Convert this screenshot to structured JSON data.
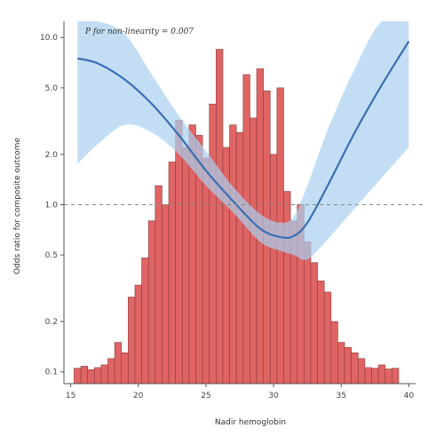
{
  "chart_data": {
    "type": "bar",
    "overlay": "restricted cubic spline (line with confidence band)",
    "title": "",
    "xlabel": "Nadir hemoglobin",
    "ylabel": "Odds ratio for composite outcome",
    "annotation": "P for non-linearity = 0.007",
    "x_ticks": [
      15,
      20,
      25,
      30,
      35,
      40
    ],
    "y_ticks": [
      {
        "value": 10.0,
        "label": "10.0"
      },
      {
        "value": 5.0,
        "label": "5.0"
      },
      {
        "value": 2.0,
        "label": "2.0"
      },
      {
        "value": 1.0,
        "label": "1.0"
      },
      {
        "value": 0.5,
        "label": "0.5"
      },
      {
        "value": 0.2,
        "label": "0.2"
      },
      {
        "value": 0.1,
        "label": "0.1"
      }
    ],
    "xlim": [
      14.5,
      40.5
    ],
    "ylim": [
      0.085,
      12.5
    ],
    "yscale": "log",
    "reference_line": {
      "y": 1.0,
      "style": "dashed"
    },
    "bins": [
      {
        "x": 15.5,
        "y": 0.105
      },
      {
        "x": 16.0,
        "y": 0.108
      },
      {
        "x": 16.5,
        "y": 0.103
      },
      {
        "x": 17.0,
        "y": 0.106
      },
      {
        "x": 17.5,
        "y": 0.11
      },
      {
        "x": 18.0,
        "y": 0.12
      },
      {
        "x": 18.5,
        "y": 0.15
      },
      {
        "x": 19.0,
        "y": 0.13
      },
      {
        "x": 19.5,
        "y": 0.28
      },
      {
        "x": 20.0,
        "y": 0.33
      },
      {
        "x": 20.5,
        "y": 0.48
      },
      {
        "x": 21.0,
        "y": 0.8
      },
      {
        "x": 21.5,
        "y": 1.3
      },
      {
        "x": 22.0,
        "y": 1.0
      },
      {
        "x": 22.5,
        "y": 1.8
      },
      {
        "x": 23.0,
        "y": 3.2
      },
      {
        "x": 23.5,
        "y": 2.2
      },
      {
        "x": 24.0,
        "y": 3.0
      },
      {
        "x": 24.5,
        "y": 2.6
      },
      {
        "x": 25.0,
        "y": 1.9
      },
      {
        "x": 25.5,
        "y": 4.0
      },
      {
        "x": 26.0,
        "y": 8.5
      },
      {
        "x": 26.5,
        "y": 2.2
      },
      {
        "x": 27.0,
        "y": 3.0
      },
      {
        "x": 27.5,
        "y": 2.7
      },
      {
        "x": 28.0,
        "y": 6.0
      },
      {
        "x": 28.5,
        "y": 3.3
      },
      {
        "x": 29.0,
        "y": 6.5
      },
      {
        "x": 29.5,
        "y": 4.8
      },
      {
        "x": 30.0,
        "y": 2.0
      },
      {
        "x": 30.5,
        "y": 5.0
      },
      {
        "x": 31.0,
        "y": 1.2
      },
      {
        "x": 31.5,
        "y": 0.8
      },
      {
        "x": 32.0,
        "y": 1.0
      },
      {
        "x": 32.5,
        "y": 0.6
      },
      {
        "x": 33.0,
        "y": 0.45
      },
      {
        "x": 33.5,
        "y": 0.35
      },
      {
        "x": 34.0,
        "y": 0.3
      },
      {
        "x": 34.5,
        "y": 0.2
      },
      {
        "x": 35.0,
        "y": 0.15
      },
      {
        "x": 35.5,
        "y": 0.14
      },
      {
        "x": 36.0,
        "y": 0.13
      },
      {
        "x": 36.5,
        "y": 0.12
      },
      {
        "x": 37.0,
        "y": 0.106
      },
      {
        "x": 37.5,
        "y": 0.105
      },
      {
        "x": 38.0,
        "y": 0.11
      },
      {
        "x": 38.5,
        "y": 0.104
      },
      {
        "x": 39.0,
        "y": 0.105
      }
    ],
    "bin_width": 0.5,
    "curve": {
      "x": [
        15.5,
        17,
        19,
        21,
        23,
        25,
        27,
        29,
        30.5,
        31.5,
        32.5,
        34,
        36,
        38,
        40
      ],
      "y": [
        7.5,
        7.0,
        5.6,
        4.0,
        2.6,
        1.6,
        1.05,
        0.72,
        0.64,
        0.65,
        0.78,
        1.3,
        2.7,
        5.2,
        9.5
      ],
      "lower": [
        1.75,
        2.3,
        3.0,
        2.7,
        2.0,
        1.3,
        0.9,
        0.6,
        0.53,
        0.5,
        0.47,
        0.62,
        0.95,
        1.45,
        2.2
      ],
      "upper": [
        12.5,
        12.5,
        10.5,
        6.0,
        3.4,
        2.1,
        1.28,
        0.88,
        0.78,
        0.85,
        1.3,
        2.8,
        6.5,
        12.5,
        12.5
      ]
    },
    "colors": {
      "bar_fill": "#e06464",
      "bar_stroke": "#8c3a3a",
      "line": "#3a6fb4",
      "band": "#a9d0ef",
      "reference": "#888888",
      "axis": "#555555"
    }
  }
}
